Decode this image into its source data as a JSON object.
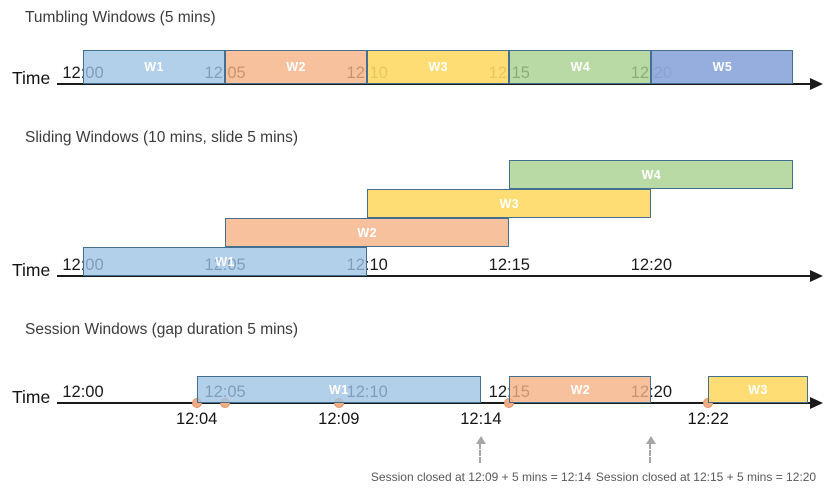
{
  "diagram": {
    "background": "#FFFFFF",
    "sections": [
      {
        "id": "tumbling",
        "title": "Tumbling Windows (5 mins)",
        "axis_label": "Time",
        "ticks": [
          {
            "label": "12:00",
            "min": 0
          },
          {
            "label": "12:05",
            "min": 5
          },
          {
            "label": "12:10",
            "min": 10
          },
          {
            "label": "12:15",
            "min": 15
          },
          {
            "label": "12:20",
            "min": 20
          }
        ],
        "windows": [
          {
            "label": "W1",
            "color": "blue",
            "start_min": 0,
            "end_min": 5,
            "row": 0
          },
          {
            "label": "W2",
            "color": "orange",
            "start_min": 5,
            "end_min": 10,
            "row": 0
          },
          {
            "label": "W3",
            "color": "yellow",
            "start_min": 10,
            "end_min": 15,
            "row": 0
          },
          {
            "label": "W4",
            "color": "green",
            "start_min": 15,
            "end_min": 20,
            "row": 0
          },
          {
            "label": "W5",
            "color": "periwinkle",
            "start_min": 20,
            "end_min": 25,
            "row": 0
          }
        ]
      },
      {
        "id": "sliding",
        "title": "Sliding Windows (10 mins, slide 5 mins)",
        "axis_label": "Time",
        "ticks": [
          {
            "label": "12:00",
            "min": 0
          },
          {
            "label": "12:05",
            "min": 5
          },
          {
            "label": "12:10",
            "min": 10
          },
          {
            "label": "12:15",
            "min": 15
          },
          {
            "label": "12:20",
            "min": 20
          }
        ],
        "windows": [
          {
            "label": "W1",
            "color": "blue",
            "start_min": 0,
            "end_min": 10,
            "row": 0
          },
          {
            "label": "W2",
            "color": "orange",
            "start_min": 5,
            "end_min": 15,
            "row": 1
          },
          {
            "label": "W3",
            "color": "yellow",
            "start_min": 10,
            "end_min": 20,
            "row": 2
          },
          {
            "label": "W4",
            "color": "green",
            "start_min": 15,
            "end_min": 25,
            "row": 3
          }
        ]
      },
      {
        "id": "session",
        "title": "Session Windows (gap duration 5 mins)",
        "axis_label": "Time",
        "ticks": [
          {
            "label": "12:00",
            "min": 0
          },
          {
            "label": "12:05",
            "min": 5
          },
          {
            "label": "12:10",
            "min": 10
          },
          {
            "label": "12:15",
            "min": 15
          },
          {
            "label": "12:20",
            "min": 20
          }
        ],
        "windows": [
          {
            "label": "W1",
            "color": "blue",
            "start_min": 4,
            "end_min": 14,
            "row": 0
          },
          {
            "label": "W2",
            "color": "orange",
            "start_min": 15,
            "end_min": 20,
            "row": 0
          },
          {
            "label": "W3",
            "color": "yellow",
            "start_min": 22,
            "end_min": null,
            "row": 0
          }
        ],
        "event_dots_min": [
          4,
          5,
          9,
          15,
          22
        ],
        "event_labels": [
          {
            "label": "12:04",
            "min": 4
          },
          {
            "label": "12:09",
            "min": 9
          },
          {
            "label": "12:14",
            "min": 14
          },
          {
            "label": "12:22",
            "min": 22
          }
        ],
        "close_arrows_min": [
          14,
          20
        ],
        "captions": [
          "Session closed at 12:09 + 5 mins = 12:14",
          "Session closed at 12:15 + 5 mins = 12:20"
        ]
      }
    ],
    "colors": {
      "blue": "#9DC3E6",
      "orange": "#F4B183",
      "yellow": "#FFD966",
      "green": "#A9D18E",
      "periwinkle": "#8FAADC",
      "window_border": "#44708F",
      "axis": "#1A1A1A",
      "title_text": "#3B3B3B",
      "tick_text": "#1A1A1A",
      "event_dot_fill": "#F2AD85",
      "event_dot_border": "#E2926A",
      "close_arrow": "#A6A6A6",
      "caption_text": "#595959"
    },
    "icons": {
      "axis_arrow_icon": "right-pointing solid triangle at end of time axis",
      "close_arrow_icon": "upward gray dashed arrow",
      "event_dot": "orange filled circle event marker"
    }
  }
}
